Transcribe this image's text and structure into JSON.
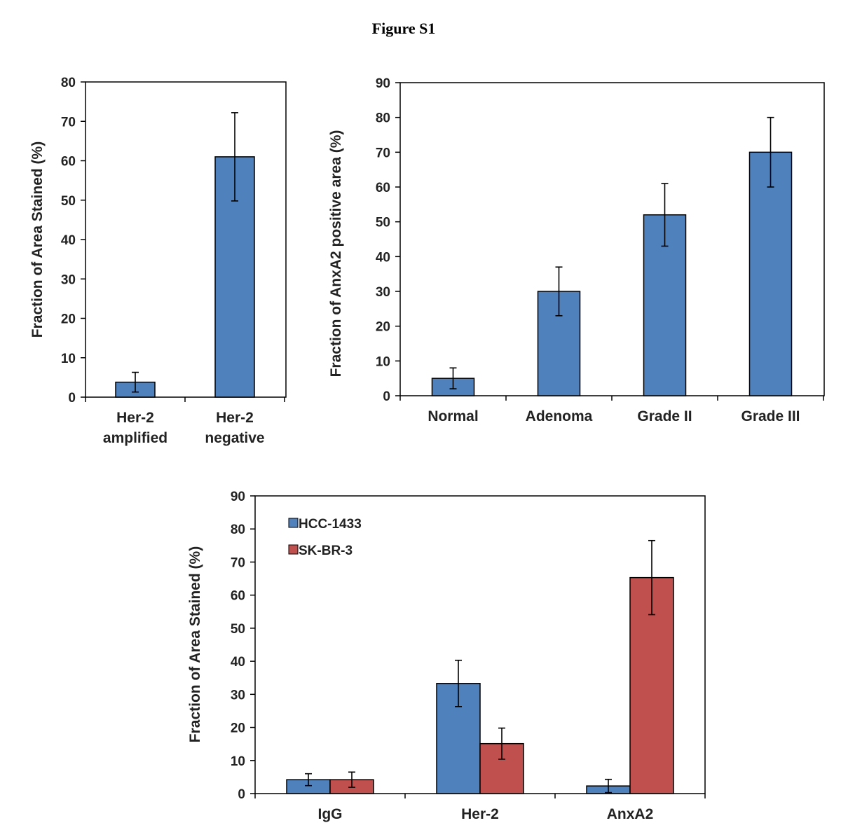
{
  "figure": {
    "title": "Figure S1"
  },
  "colors": {
    "blue": "#4f81bd",
    "red": "#c0504d",
    "ink": "#000000"
  },
  "chart_data": [
    {
      "type": "bar",
      "title": "",
      "xlabel": "",
      "ylabel": "Fraction of Area Stained (%)",
      "ylim": [
        0,
        80
      ],
      "yticks": [
        0,
        10,
        20,
        30,
        40,
        50,
        60,
        70,
        80
      ],
      "categories": [
        [
          "Her-2",
          "amplified"
        ],
        [
          "Her-2",
          "negative"
        ]
      ],
      "series": [
        {
          "name": "",
          "color": "blue",
          "values": [
            3.8,
            61
          ],
          "errors": [
            2.5,
            11.2
          ]
        }
      ],
      "legend": false,
      "grid": false
    },
    {
      "type": "bar",
      "title": "",
      "xlabel": "",
      "ylabel": "Fraction of AnxA2 positive area (%)",
      "ylim": [
        0,
        90
      ],
      "yticks": [
        0,
        10,
        20,
        30,
        40,
        50,
        60,
        70,
        80,
        90
      ],
      "categories": [
        [
          "Normal"
        ],
        [
          "Adenoma"
        ],
        [
          "Grade II"
        ],
        [
          "Grade III"
        ]
      ],
      "series": [
        {
          "name": "",
          "color": "blue",
          "values": [
            5,
            30,
            52,
            70
          ],
          "errors": [
            3,
            7,
            9,
            10
          ]
        }
      ],
      "legend": false,
      "grid": false
    },
    {
      "type": "bar",
      "title": "",
      "xlabel": "",
      "ylabel": "Fraction of Area Stained (%)",
      "ylim": [
        0,
        90
      ],
      "yticks": [
        0,
        10,
        20,
        30,
        40,
        50,
        60,
        70,
        80,
        90
      ],
      "categories": [
        [
          "IgG"
        ],
        [
          "Her-2"
        ],
        [
          "AnxA2"
        ]
      ],
      "series": [
        {
          "name": "HCC-1433",
          "color": "blue",
          "values": [
            4.2,
            33.3,
            2.3
          ],
          "errors": [
            1.8,
            7.0,
            2.0
          ]
        },
        {
          "name": "SK-BR-3",
          "color": "red",
          "values": [
            4.2,
            15.1,
            65.3
          ],
          "errors": [
            2.3,
            4.7,
            11.2
          ]
        }
      ],
      "legend": true,
      "legend_position": "top-left",
      "grid": false
    }
  ]
}
